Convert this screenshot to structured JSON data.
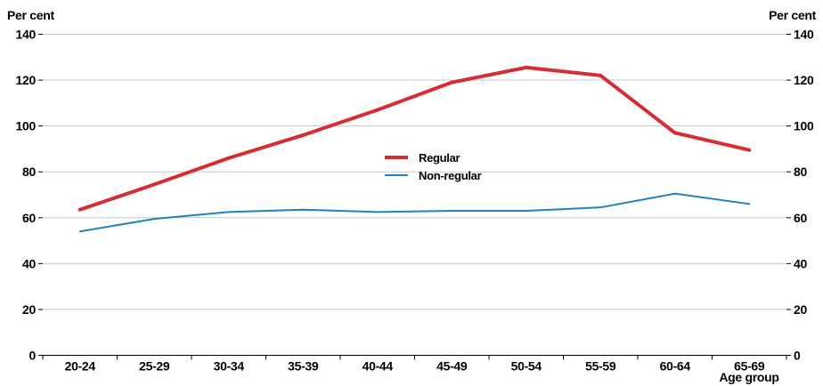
{
  "chart_data": {
    "type": "line",
    "left_unit_label": "Per cent",
    "right_unit_label": "Per cent",
    "xlabel": "Age group",
    "ylim": [
      0,
      140
    ],
    "yticks": [
      0,
      20,
      40,
      60,
      80,
      100,
      120,
      140
    ],
    "grid": true,
    "legend_position": "center",
    "categories": [
      "20-24",
      "25-29",
      "30-34",
      "35-39",
      "40-44",
      "45-49",
      "50-54",
      "55-59",
      "60-64",
      "65-69"
    ],
    "series": [
      {
        "name": "Regular",
        "color": "#d62d35",
        "values": [
          63.5,
          74.5,
          86,
          96,
          107,
          119,
          125.5,
          122,
          97,
          89.5
        ]
      },
      {
        "name": "Non-regular",
        "color": "#1f82c0",
        "values": [
          54,
          59.5,
          62.5,
          63.5,
          62.5,
          63,
          63,
          64.5,
          70.5,
          66
        ]
      }
    ]
  }
}
